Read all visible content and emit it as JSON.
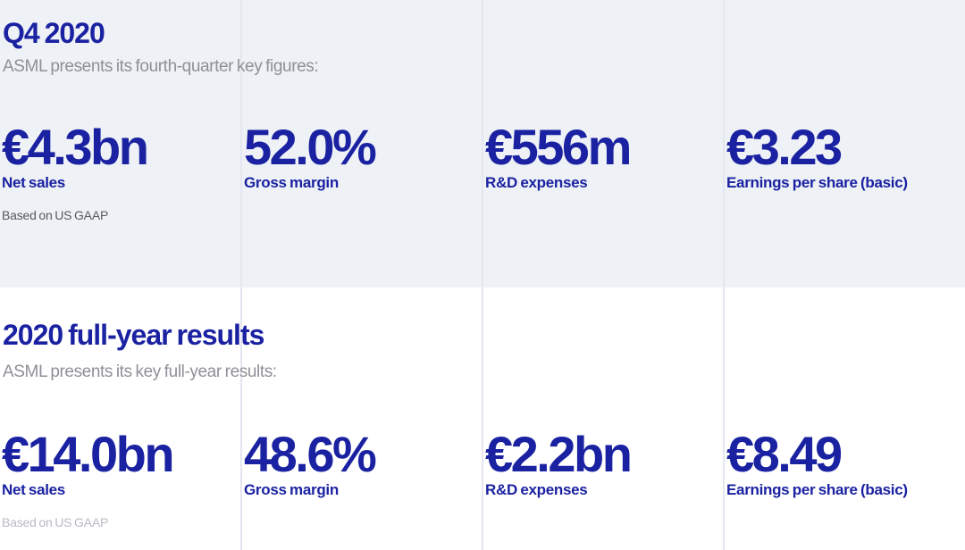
{
  "colors": {
    "accent_blue": "#1a22a2",
    "section_background": "#eef1f5",
    "divider": "#e4e6f0",
    "subtitle_gray": "#8f9098",
    "note_dark_gray": "#585a62",
    "note_light_gray": "#b8bac6"
  },
  "sections": [
    {
      "id": "q4-2020",
      "title": "Q4 2020",
      "subtitle": "ASML presents its fourth-quarter key figures:",
      "metrics": [
        {
          "value": "€4.3bn",
          "label": "Net sales",
          "note": "Based on US GAAP"
        },
        {
          "value": "52.0%",
          "label": "Gross margin"
        },
        {
          "value": "€556m",
          "label": "R&D expenses"
        },
        {
          "value": "€3.23",
          "label": "Earnings per share (basic)"
        }
      ]
    },
    {
      "id": "full-year-2020",
      "title": "2020 full-year results",
      "subtitle": "ASML presents its key full-year results:",
      "metrics": [
        {
          "value": "€14.0bn",
          "label": "Net sales",
          "note": "Based on US GAAP"
        },
        {
          "value": "48.6%",
          "label": "Gross margin"
        },
        {
          "value": "€2.2bn",
          "label": "R&D expenses"
        },
        {
          "value": "€8.49",
          "label": "Earnings per share (basic)"
        }
      ]
    }
  ]
}
